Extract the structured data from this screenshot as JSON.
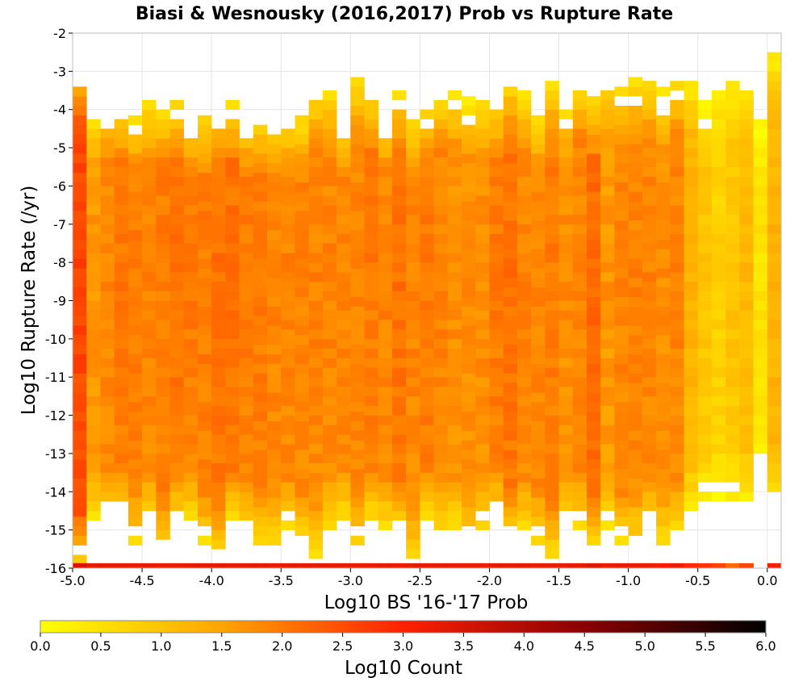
{
  "chart_data": {
    "type": "heatmap",
    "title": "Biasi & Wesnousky (2016,2017) Prob vs Rupture Rate",
    "xlabel": "Log10 BS '16-'17 Prob",
    "ylabel": "Log10 Rupture Rate (/yr)",
    "xlim": [
      -5.0,
      0.1
    ],
    "ylim": [
      -16,
      -2
    ],
    "x_bin_width": 0.1,
    "y_bin_width": 0.25,
    "x_ticks": [
      "-5.0",
      "-4.5",
      "-4.0",
      "-3.5",
      "-3.0",
      "-2.5",
      "-2.0",
      "-1.5",
      "-1.0",
      "-0.5",
      "0.0"
    ],
    "y_ticks": [
      "-2",
      "-3",
      "-4",
      "-5",
      "-6",
      "-7",
      "-8",
      "-9",
      "-10",
      "-11",
      "-12",
      "-13",
      "-14",
      "-15",
      "-16"
    ],
    "grid": true,
    "colorbar": {
      "label": "Log10 Count",
      "range": [
        0.0,
        6.0
      ],
      "ticks": [
        "0.0",
        "0.5",
        "1.0",
        "1.5",
        "2.0",
        "2.5",
        "3.0",
        "3.5",
        "4.0",
        "4.5",
        "5.0",
        "5.5",
        "6.0"
      ],
      "colors": [
        "#ffff00",
        "#ffa500",
        "#ff2000",
        "#8b0000",
        "#000000"
      ]
    },
    "cells_note": "z = Log10 Count per (x,y) bin; approximate distribution",
    "column_profile": {
      "x_bins": [
        -5.0,
        -4.9,
        -4.8,
        -4.7,
        -4.6,
        -4.5,
        -4.4,
        -4.3,
        -4.2,
        -4.1,
        -4.0,
        -3.9,
        -3.8,
        -3.7,
        -3.6,
        -3.5,
        -3.4,
        -3.3,
        -3.2,
        -3.1,
        -3.0,
        -2.9,
        -2.8,
        -2.7,
        -2.6,
        -2.5,
        -2.4,
        -2.3,
        -2.2,
        -2.1,
        -2.0,
        -1.9,
        -1.8,
        -1.7,
        -1.6,
        -1.5,
        -1.4,
        -1.3,
        -1.2,
        -1.1,
        -1.0,
        -0.9,
        -0.8,
        -0.7,
        -0.6,
        -0.5,
        -0.4,
        -0.3,
        -0.2,
        -0.1,
        0.0
      ],
      "y_top": [
        -3.0,
        -4.25,
        -3.9,
        -3.9,
        -4.25,
        -3.9,
        -4.0,
        -3.9,
        -4.25,
        -4.25,
        -3.9,
        -3.9,
        -4.25,
        -4.25,
        -4.25,
        -4.25,
        -4.25,
        -3.6,
        -3.6,
        -4.25,
        -3.3,
        -3.6,
        -4.25,
        -3.6,
        -4.25,
        -3.9,
        -3.6,
        -3.6,
        -3.9,
        -3.9,
        -3.9,
        -3.3,
        -3.6,
        -4.25,
        -3.3,
        -3.9,
        -3.3,
        -3.9,
        -3.3,
        -3.6,
        -3.3,
        -3.3,
        -3.6,
        -3.3,
        -3.3,
        -3.9,
        -3.3,
        -3.3,
        -3.6,
        -4.25,
        -2.7
      ],
      "y_bottom": [
        -15.9,
        -14.75,
        -14.75,
        -14.75,
        -15.4,
        -14.75,
        -15.75,
        -14.75,
        -14.75,
        -15.4,
        -15.75,
        -14.75,
        -15.0,
        -15.4,
        -15.4,
        -15.0,
        -15.4,
        -15.75,
        -15.0,
        -14.75,
        -15.4,
        -14.75,
        -15.0,
        -15.0,
        -15.75,
        -14.75,
        -15.0,
        -15.0,
        -15.4,
        -15.0,
        -14.75,
        -15.4,
        -15.0,
        -15.4,
        -15.75,
        -15.0,
        -15.0,
        -15.4,
        -15.0,
        -15.4,
        -15.4,
        -15.0,
        -15.4,
        -15.0,
        -14.5,
        -14.25,
        -14.25,
        -14.25,
        -14.25,
        -13.25,
        -14.5
      ],
      "peak_log10_count": [
        2.6,
        1.7,
        1.9,
        2.0,
        2.0,
        1.9,
        2.0,
        2.1,
        2.0,
        2.0,
        2.1,
        2.1,
        2.0,
        2.0,
        1.9,
        1.9,
        1.9,
        1.9,
        1.9,
        1.9,
        1.9,
        2.0,
        1.9,
        2.1,
        1.9,
        2.0,
        1.9,
        1.8,
        1.8,
        1.8,
        2.0,
        2.1,
        1.9,
        1.9,
        2.0,
        1.8,
        1.9,
        2.2,
        1.7,
        1.9,
        1.9,
        1.9,
        1.8,
        1.9,
        1.3,
        1.0,
        0.8,
        1.0,
        1.2,
        0.5,
        1.3
      ],
      "bottom_row_log10_count": [
        3.5,
        3.3,
        3.3,
        3.3,
        3.2,
        3.3,
        3.2,
        3.2,
        3.3,
        3.3,
        3.3,
        3.3,
        3.3,
        3.3,
        3.2,
        3.3,
        3.3,
        3.3,
        3.3,
        3.3,
        3.2,
        3.2,
        3.3,
        3.2,
        3.3,
        3.3,
        3.3,
        3.2,
        3.2,
        3.2,
        3.3,
        3.3,
        3.3,
        3.2,
        3.2,
        3.3,
        3.3,
        3.4,
        3.2,
        3.3,
        3.2,
        3.2,
        3.1,
        3.2,
        2.9,
        2.8,
        2.6,
        2.2,
        2.6,
        0.0,
        3.1
      ]
    }
  }
}
